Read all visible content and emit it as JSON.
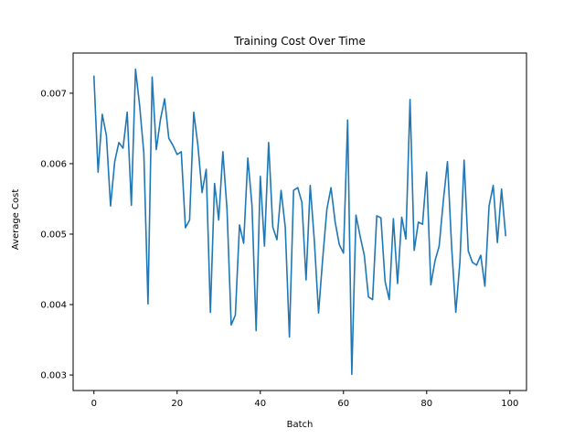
{
  "chart_data": {
    "type": "line",
    "title": "Training Cost Over Time",
    "xlabel": "Batch",
    "ylabel": "Average Cost",
    "xlim": [
      -5,
      104
    ],
    "ylim": [
      0.00278,
      0.00757
    ],
    "xticks": [
      0,
      20,
      40,
      60,
      80,
      100
    ],
    "yticks": [
      0.003,
      0.004,
      0.005,
      0.006,
      0.007
    ],
    "ytick_labels": [
      "0.003",
      "0.004",
      "0.005",
      "0.006",
      "0.007"
    ],
    "grid": false,
    "series": [
      {
        "color": "#1f77b4",
        "x": [
          0,
          1,
          2,
          3,
          4,
          5,
          6,
          7,
          8,
          9,
          10,
          11,
          12,
          13,
          14,
          15,
          16,
          17,
          18,
          19,
          20,
          21,
          22,
          23,
          24,
          25,
          26,
          27,
          28,
          29,
          30,
          31,
          32,
          33,
          34,
          35,
          36,
          37,
          38,
          39,
          40,
          41,
          42,
          43,
          44,
          45,
          46,
          47,
          48,
          49,
          50,
          51,
          52,
          53,
          54,
          55,
          56,
          57,
          58,
          59,
          60,
          61,
          62,
          63,
          64,
          65,
          66,
          67,
          68,
          69,
          70,
          71,
          72,
          73,
          74,
          75,
          76,
          77,
          78,
          79,
          80,
          81,
          82,
          83,
          84,
          85,
          86,
          87,
          88,
          89,
          90,
          91,
          92,
          93,
          94,
          95,
          96,
          97,
          98,
          99
        ],
        "y": [
          0.00725,
          0.00588,
          0.0067,
          0.0064,
          0.0054,
          0.00603,
          0.0063,
          0.00622,
          0.00673,
          0.00541,
          0.00734,
          0.00682,
          0.00615,
          0.00401,
          0.00723,
          0.0062,
          0.00663,
          0.00692,
          0.00636,
          0.00626,
          0.00613,
          0.00617,
          0.00509,
          0.0052,
          0.00673,
          0.00626,
          0.00559,
          0.00592,
          0.00389,
          0.00572,
          0.0052,
          0.00617,
          0.00535,
          0.00371,
          0.00385,
          0.00513,
          0.00487,
          0.00608,
          0.00541,
          0.00363,
          0.00582,
          0.00483,
          0.0063,
          0.0051,
          0.00492,
          0.00562,
          0.0051,
          0.00354,
          0.00562,
          0.00566,
          0.00545,
          0.00435,
          0.00569,
          0.0049,
          0.00388,
          0.00465,
          0.00535,
          0.00566,
          0.00517,
          0.00485,
          0.00473,
          0.00662,
          0.00301,
          0.00527,
          0.00497,
          0.0047,
          0.00411,
          0.00407,
          0.00526,
          0.00523,
          0.00433,
          0.00407,
          0.00522,
          0.0043,
          0.00524,
          0.00493,
          0.00691,
          0.00477,
          0.00517,
          0.00514,
          0.00588,
          0.00428,
          0.00462,
          0.00483,
          0.00547,
          0.00603,
          0.00482,
          0.00389,
          0.00461,
          0.00605,
          0.00476,
          0.0046,
          0.00456,
          0.0047,
          0.00426,
          0.0054,
          0.00569,
          0.00488,
          0.00564,
          0.00497
        ]
      }
    ]
  }
}
